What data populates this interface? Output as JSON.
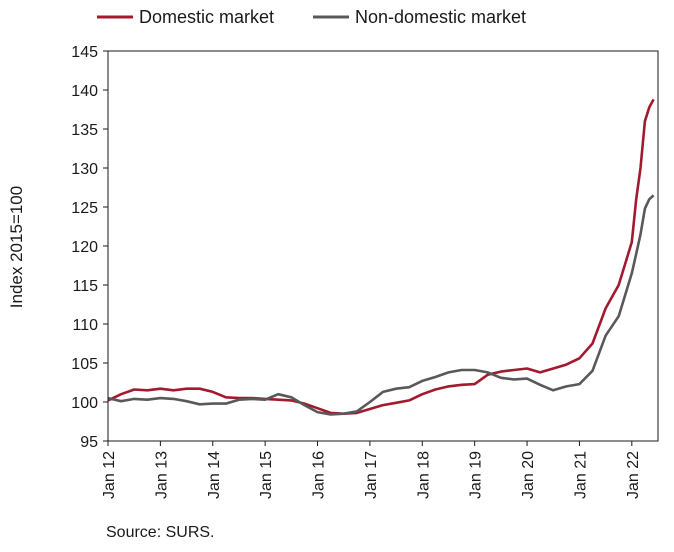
{
  "chart_data": {
    "type": "line",
    "ylabel": "Index 2015=100",
    "ylim": [
      95,
      145
    ],
    "yticks": [
      95,
      100,
      105,
      110,
      115,
      120,
      125,
      130,
      135,
      140,
      145
    ],
    "xlim": [
      "2012-01",
      "2022-07"
    ],
    "xticks": [
      {
        "date": "2012-01",
        "label": "Jan 12"
      },
      {
        "date": "2013-01",
        "label": "Jan 13"
      },
      {
        "date": "2014-01",
        "label": "Jan 14"
      },
      {
        "date": "2015-01",
        "label": "Jan 15"
      },
      {
        "date": "2016-01",
        "label": "Jan 16"
      },
      {
        "date": "2017-01",
        "label": "Jan 17"
      },
      {
        "date": "2018-01",
        "label": "Jan 18"
      },
      {
        "date": "2019-01",
        "label": "Jan 19"
      },
      {
        "date": "2020-01",
        "label": "Jan 20"
      },
      {
        "date": "2021-01",
        "label": "Jan 21"
      },
      {
        "date": "2022-01",
        "label": "Jan 22"
      }
    ],
    "legend_position": "top",
    "grid": false,
    "series": [
      {
        "name": "Domestic market",
        "color": "#a3192e",
        "points": [
          [
            "2012-01",
            100.2
          ],
          [
            "2012-04",
            101.0
          ],
          [
            "2012-07",
            101.6
          ],
          [
            "2012-10",
            101.5
          ],
          [
            "2013-01",
            101.7
          ],
          [
            "2013-04",
            101.5
          ],
          [
            "2013-07",
            101.7
          ],
          [
            "2013-10",
            101.7
          ],
          [
            "2014-01",
            101.3
          ],
          [
            "2014-04",
            100.6
          ],
          [
            "2014-07",
            100.5
          ],
          [
            "2014-10",
            100.5
          ],
          [
            "2015-01",
            100.4
          ],
          [
            "2015-04",
            100.3
          ],
          [
            "2015-07",
            100.2
          ],
          [
            "2015-10",
            99.8
          ],
          [
            "2016-01",
            99.2
          ],
          [
            "2016-04",
            98.6
          ],
          [
            "2016-07",
            98.5
          ],
          [
            "2016-10",
            98.6
          ],
          [
            "2017-01",
            99.1
          ],
          [
            "2017-04",
            99.6
          ],
          [
            "2017-07",
            99.9
          ],
          [
            "2017-10",
            100.2
          ],
          [
            "2018-01",
            101.0
          ],
          [
            "2018-04",
            101.6
          ],
          [
            "2018-07",
            102.0
          ],
          [
            "2018-10",
            102.2
          ],
          [
            "2019-01",
            102.3
          ],
          [
            "2019-04",
            103.5
          ],
          [
            "2019-07",
            103.9
          ],
          [
            "2019-10",
            104.1
          ],
          [
            "2020-01",
            104.3
          ],
          [
            "2020-04",
            103.8
          ],
          [
            "2020-07",
            104.3
          ],
          [
            "2020-10",
            104.8
          ],
          [
            "2021-01",
            105.6
          ],
          [
            "2021-04",
            107.5
          ],
          [
            "2021-07",
            112.0
          ],
          [
            "2021-10",
            115.0
          ],
          [
            "2022-01",
            120.5
          ],
          [
            "2022-02",
            126.0
          ],
          [
            "2022-03",
            130.0
          ],
          [
            "2022-04",
            136.0
          ],
          [
            "2022-05",
            137.8
          ],
          [
            "2022-06",
            138.8
          ]
        ]
      },
      {
        "name": "Non-domestic market",
        "color": "#595959",
        "points": [
          [
            "2012-01",
            100.5
          ],
          [
            "2012-04",
            100.1
          ],
          [
            "2012-07",
            100.4
          ],
          [
            "2012-10",
            100.3
          ],
          [
            "2013-01",
            100.5
          ],
          [
            "2013-04",
            100.4
          ],
          [
            "2013-07",
            100.1
          ],
          [
            "2013-10",
            99.7
          ],
          [
            "2014-01",
            99.8
          ],
          [
            "2014-04",
            99.8
          ],
          [
            "2014-07",
            100.3
          ],
          [
            "2014-10",
            100.4
          ],
          [
            "2015-01",
            100.3
          ],
          [
            "2015-04",
            101.0
          ],
          [
            "2015-07",
            100.6
          ],
          [
            "2015-10",
            99.6
          ],
          [
            "2016-01",
            98.7
          ],
          [
            "2016-04",
            98.4
          ],
          [
            "2016-07",
            98.5
          ],
          [
            "2016-10",
            98.8
          ],
          [
            "2017-01",
            100.0
          ],
          [
            "2017-04",
            101.3
          ],
          [
            "2017-07",
            101.7
          ],
          [
            "2017-10",
            101.9
          ],
          [
            "2018-01",
            102.7
          ],
          [
            "2018-04",
            103.2
          ],
          [
            "2018-07",
            103.8
          ],
          [
            "2018-10",
            104.1
          ],
          [
            "2019-01",
            104.1
          ],
          [
            "2019-04",
            103.8
          ],
          [
            "2019-07",
            103.1
          ],
          [
            "2019-10",
            102.9
          ],
          [
            "2020-01",
            103.0
          ],
          [
            "2020-04",
            102.2
          ],
          [
            "2020-07",
            101.5
          ],
          [
            "2020-10",
            102.0
          ],
          [
            "2021-01",
            102.3
          ],
          [
            "2021-04",
            104.0
          ],
          [
            "2021-07",
            108.5
          ],
          [
            "2021-10",
            111.0
          ],
          [
            "2022-01",
            116.5
          ],
          [
            "2022-02",
            119.0
          ],
          [
            "2022-03",
            121.5
          ],
          [
            "2022-04",
            124.8
          ],
          [
            "2022-05",
            126.0
          ],
          [
            "2022-06",
            126.5
          ]
        ]
      }
    ]
  },
  "footer": {
    "source": "Source: SURS."
  }
}
